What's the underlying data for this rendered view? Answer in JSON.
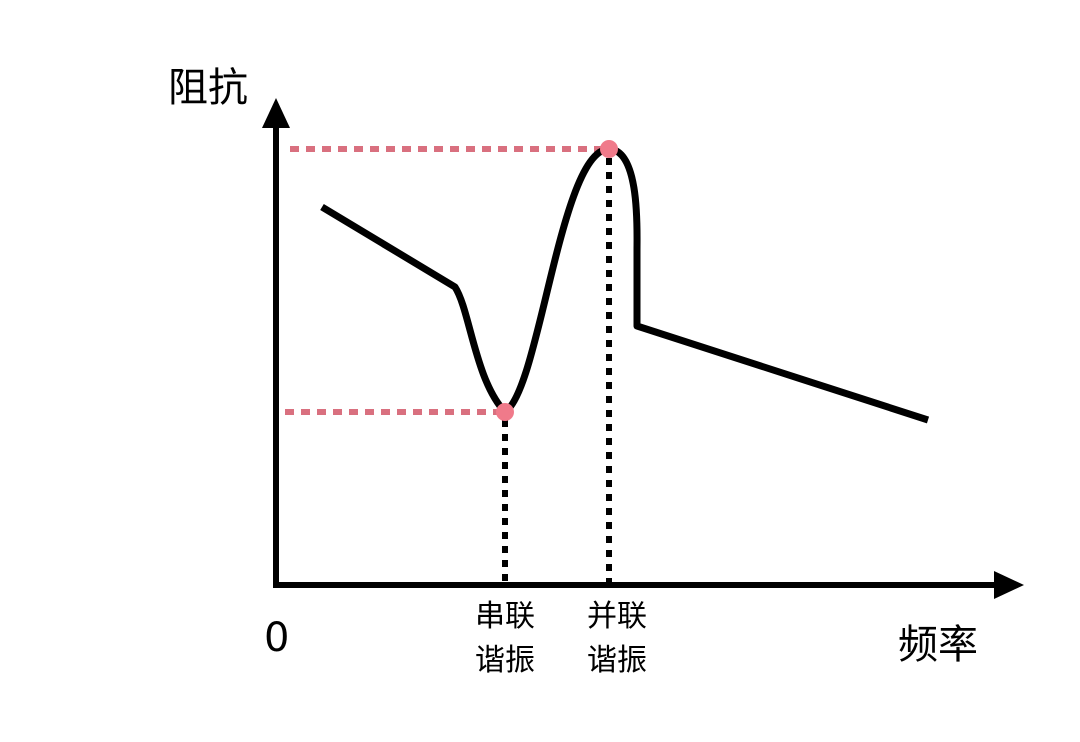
{
  "y_axis_label": "阻抗",
  "x_axis_label": "频率",
  "origin_label": "0",
  "markers": [
    {
      "line1": "串联",
      "line2": "谐振"
    },
    {
      "line1": "并联",
      "line2": "谐振"
    }
  ],
  "colors": {
    "curve": "#000000",
    "marker": "#f07a8a",
    "guide": "#d9707f"
  }
}
